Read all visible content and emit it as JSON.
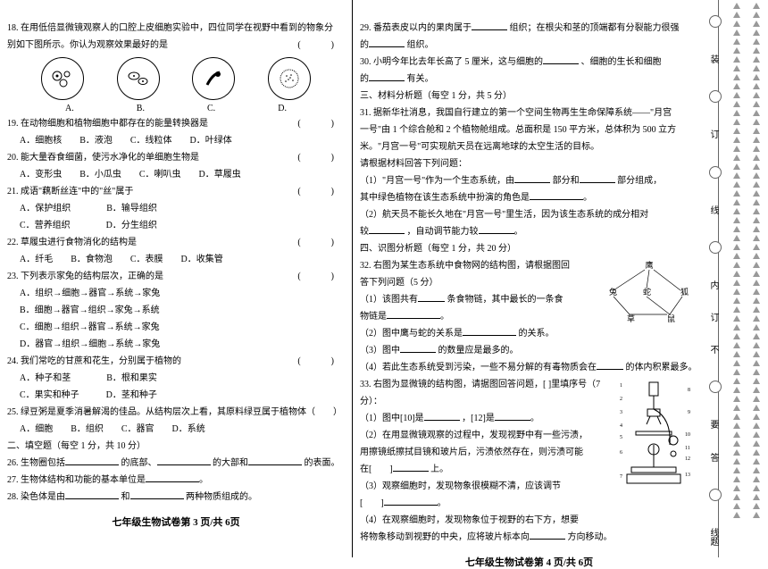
{
  "leftPage": {
    "q18_l1": "18. 在用低倍显微镜观察人的口腔上皮细胞实验中，四位同学在视野中看到的物象分",
    "q18_l2": "别如下图所示。你认为观察效果最好的是",
    "circle_labels": {
      "a": "A.",
      "b": "B.",
      "c": "C.",
      "d": "D."
    },
    "q19": "19. 在动物细胞和植物细胞中都存在的能量转换器是",
    "q19_opts": "A．细胞核　　B．液泡　　C．线粒体　　D．叶绿体",
    "q20": "20. 能大量吞食细菌，使污水净化的单细胞生物是",
    "q20_opts": "A．变形虫　　B．小瓜虫　　C．喇叭虫　　D．草履虫",
    "q21": "21. 成语\"藕断丝连\"中的\"丝\"属于",
    "q21_opts": "A．保护组织　　　　B．输导组织",
    "q21_opts2": "C．营养组织　　　　D．分生组织",
    "q22": "22. 草履虫进行食物消化的结构是",
    "q22_opts": "A．纤毛　　B．食物泡　　C．表膜　　D．收集管",
    "q23": "23. 下列表示家兔的结构层次，正确的是",
    "q23a": "A．组织→细胞→器官→系统→家兔",
    "q23b": "B．细胞→器官→组织→家兔→系统",
    "q23c": "C．细胞→组织→器官→系统→家兔",
    "q23d": "D．器官→组织→细胞→系统→家兔",
    "q24": "24. 我们常吃的甘蔗和花生，分别属于植物的",
    "q24_opts": "A．种子和茎　　　　B．根和果实",
    "q24_opts2": "C．果实和种子　　　D．茎和种子",
    "q25": "25. 绿豆粥是夏季消暑解渴的佳品。从结构层次上看，其原料绿豆属于植物体（　　）",
    "q25_opts": "A．细胞　　B．组织　　C．器官　　D．系统",
    "sec2": "二、填空题（每空 1 分，共 10 分）",
    "q26a": "26. 生物圈包括",
    "q26b": "的底部、",
    "q26c": "的大部和",
    "q26d": "的表面。",
    "q27": "27. 生物体结构和功能的基本单位是",
    "q28a": "28. 染色体是由",
    "q28b": "和",
    "q28c": "两种物质组成的。",
    "footer": "七年级生物试卷第 3 页/共 6页"
  },
  "rightPage": {
    "q29a": "29. 番茄表皮以内的果肉属于",
    "q29b": "组织；在根尖和茎的顶端都有分裂能力很强",
    "q29c": "的",
    "q29d": "组织。",
    "q30a": "30. 小明今年比去年长高了 5 厘米，这与细胞的",
    "q30b": "、细胞的生长和细胞",
    "q30c": "的",
    "q30d": "有关。",
    "sec3": "三、材料分析题（每空 1 分，共 5 分）",
    "q31_l1": "31. 据新华社消息，我国自行建立的第一个空间生物再生生命保障系统——\"月宫",
    "q31_l2": "一号\"由 1 个综合舱和 2 个植物舱组成。总面积是 150 平方米，总体积为 500 立方",
    "q31_l3": "米。\"月宫一号\"可实现航天员在远离地球的太空生活的目标。",
    "q31_l4": "请根据材料回答下列问题：",
    "q31_1a": "（1）\"月宫一号\"作为一个生态系统，由",
    "q31_1b": "部分和",
    "q31_1c": "部分组成，",
    "q31_1d": "其中绿色植物在该生态系统中扮演的角色是",
    "q31_2a": "（2）航天员不能长久地在\"月宫一号\"里生活，因为该生态系统的成分相对",
    "q31_2b": "较",
    "q31_2c": "，自动调节能力较",
    "sec4": "四、识图分析题（每空 1 分，共 20 分）",
    "q32_l1": "32. 右图为某生态系统中食物网的结构图，请根据图回",
    "q32_l2": "答下列问题（5 分）",
    "q32_1a": "（1）该图共有",
    "q32_1b": "条食物链，其中最长的一条食",
    "q32_1c": "物链是",
    "q32_2a": "（2）图中鹰与蛇的关系是",
    "q32_2b": "的关系。",
    "q32_3a": "（3）图中",
    "q32_3b": "的数量应是最多的。",
    "q32_4a": "（4）若此生态系统受到污染，一些不易分解的有毒物质会在",
    "q32_4b": "的体内积累最多。",
    "q33_l1": "33. 右图为显微镜的结构图，请据图回答问题，[ ]里填序号（7 分）：",
    "q33_1a": "（1）图中[10]是",
    "q33_1b": "，[12]是",
    "q33_2a": "（2）在用显微镜观察的过程中，发现视野中有一些污渍，",
    "q33_2b": "用擦镜纸擦拭目镜和玻片后，污渍依然存在，则污渍可能",
    "q33_2c": "在[　　]",
    "q33_2d": "上。",
    "q33_3a": "（3）观察细胞时，发现物象很模糊不清，应该调节",
    "q33_3b": "[　　]",
    "q33_4a": "（4）在观察细胞时，发现物象位于视野的右下方，想要",
    "q33_4b": "将物象移动到视野的中央，应将玻片标本向",
    "q33_4c": "方向移动。",
    "footer": "七年级生物试卷第 4 页/共 6页"
  },
  "binding": {
    "chars": [
      "装",
      "订",
      "线",
      "内",
      "订",
      "不",
      "要",
      "答",
      "线题"
    ]
  }
}
